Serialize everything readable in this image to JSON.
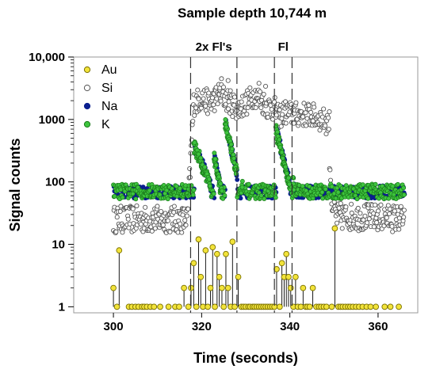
{
  "chart_data": {
    "type": "scatter",
    "title": "Sample depth 10,744 m",
    "xlabel": "Time (seconds)",
    "ylabel": "Signal counts",
    "xlim": [
      291,
      369
    ],
    "ylim": [
      0.8,
      10000
    ],
    "y_scale": "log",
    "x_ticks": [
      300,
      320,
      340,
      360
    ],
    "y_ticks": [
      {
        "value": 1,
        "label": "1"
      },
      {
        "value": 10,
        "label": "10"
      },
      {
        "value": 100,
        "label": "100"
      },
      {
        "value": 1000,
        "label": "1000"
      },
      {
        "value": 10000,
        "label": "10,000"
      }
    ],
    "grid": false,
    "legend_position": "top-left",
    "annotations": [
      {
        "text": "2x Fl's",
        "x_from": 317.5,
        "x_to": 328
      },
      {
        "text": "Fl",
        "x_from": 336.5,
        "x_to": 340.5
      }
    ],
    "markers": [
      317.5,
      328,
      336.5,
      340.5
    ],
    "series": [
      {
        "name": "Au",
        "color": "#f2e33a",
        "stroke": "#7a7000",
        "style": "stem",
        "points": [
          [
            300,
            2
          ],
          [
            300.8,
            1
          ],
          [
            301.3,
            8
          ],
          [
            303.5,
            1
          ],
          [
            304.2,
            1
          ],
          [
            305,
            1
          ],
          [
            305.7,
            1
          ],
          [
            306.5,
            1
          ],
          [
            307,
            1
          ],
          [
            307.6,
            1
          ],
          [
            308.4,
            1
          ],
          [
            309.2,
            1
          ],
          [
            310.6,
            1
          ],
          [
            312.5,
            1
          ],
          [
            314,
            1
          ],
          [
            314.9,
            1
          ],
          [
            316,
            2
          ],
          [
            317,
            1
          ],
          [
            317.6,
            2
          ],
          [
            318.2,
            5
          ],
          [
            318.8,
            1
          ],
          [
            319.3,
            12
          ],
          [
            319.8,
            3
          ],
          [
            320.3,
            1
          ],
          [
            320.9,
            8
          ],
          [
            321.4,
            1
          ],
          [
            322,
            2
          ],
          [
            322.5,
            9
          ],
          [
            323,
            1
          ],
          [
            323.5,
            7
          ],
          [
            324,
            3
          ],
          [
            324.6,
            2
          ],
          [
            325,
            1
          ],
          [
            325.5,
            7
          ],
          [
            326,
            2
          ],
          [
            326.6,
            1
          ],
          [
            327,
            11
          ],
          [
            327.5,
            1
          ],
          [
            328.3,
            3
          ],
          [
            329,
            1
          ],
          [
            329.5,
            1
          ],
          [
            330,
            1
          ],
          [
            330.6,
            1
          ],
          [
            331,
            1
          ],
          [
            331.6,
            1
          ],
          [
            332,
            1
          ],
          [
            332.5,
            1
          ],
          [
            333,
            1
          ],
          [
            333.5,
            1
          ],
          [
            334,
            1
          ],
          [
            334.5,
            1
          ],
          [
            335,
            1
          ],
          [
            335.5,
            1
          ],
          [
            336,
            1
          ],
          [
            336.5,
            1
          ],
          [
            337,
            4
          ],
          [
            337.7,
            1
          ],
          [
            338.2,
            5
          ],
          [
            338.7,
            3
          ],
          [
            339.2,
            7
          ],
          [
            339.7,
            3
          ],
          [
            340.2,
            2
          ],
          [
            340.8,
            1
          ],
          [
            341.3,
            3
          ],
          [
            341.8,
            1
          ],
          [
            342.5,
            1
          ],
          [
            343,
            2
          ],
          [
            343.6,
            1
          ],
          [
            344,
            1
          ],
          [
            344.5,
            1
          ],
          [
            345.2,
            2
          ],
          [
            346,
            1
          ],
          [
            346.6,
            1
          ],
          [
            347.1,
            1
          ],
          [
            347.7,
            1
          ],
          [
            348.3,
            1
          ],
          [
            349.5,
            1
          ],
          [
            350.2,
            18
          ],
          [
            351,
            1
          ],
          [
            351.5,
            1
          ],
          [
            352,
            1
          ],
          [
            352.6,
            1
          ],
          [
            353.2,
            1
          ],
          [
            353.7,
            1
          ],
          [
            354.3,
            1
          ],
          [
            355,
            1
          ],
          [
            355.7,
            1
          ],
          [
            356.5,
            1
          ],
          [
            357.4,
            1
          ],
          [
            358.3,
            1
          ],
          [
            359.5,
            1
          ],
          [
            361.5,
            1
          ],
          [
            362.8,
            1
          ],
          [
            364.7,
            1
          ]
        ]
      },
      {
        "name": "Si",
        "color": "#ffffff",
        "stroke": "#555555",
        "style": "scatter",
        "baseline": 25,
        "spread": 0.22,
        "segments": [
          {
            "x0": 300,
            "x1": 349,
            "dx": 0.12,
            "levels": [
              [
                300,
                25
              ],
              [
                316.8,
                25
              ],
              [
                318.2,
                1800
              ],
              [
                320,
                2200
              ],
              [
                322,
                1800
              ],
              [
                324,
                2600
              ],
              [
                326,
                2000
              ],
              [
                328.3,
                1500
              ],
              [
                330,
                1800
              ],
              [
                332,
                2500
              ],
              [
                335,
                1600
              ],
              [
                336.5,
                1500
              ],
              [
                337.2,
                1100
              ],
              [
                339,
                1300
              ],
              [
                341,
                1200
              ],
              [
                344,
                1200
              ],
              [
                346,
                1100
              ],
              [
                348.5,
                900
              ],
              [
                349,
                900
              ]
            ]
          },
          {
            "x0": 349,
            "x1": 366,
            "dx": 0.12,
            "levels": [
              [
                349,
                250
              ],
              [
                349.6,
                40
              ],
              [
                350.5,
                28
              ],
              [
                366,
                26
              ]
            ]
          }
        ],
        "outliers": [
          [
            317.5,
            60
          ],
          [
            324.5,
            4500
          ],
          [
            326,
            4200
          ],
          [
            333,
            3800
          ],
          [
            334.5,
            3400
          ]
        ]
      },
      {
        "name": "Na",
        "color": "#0a1f8f",
        "stroke": "#0a1f8f",
        "style": "scatter"
      },
      {
        "name": "K",
        "color": "#3ec43e",
        "stroke": "#1a7a1a",
        "style": "scatter",
        "baseline": 70,
        "spread": 0.12,
        "spikes": [
          {
            "x": 318.2,
            "peak": 400,
            "decay": 2.5,
            "to": 322
          },
          {
            "x": 322.8,
            "peak": 250,
            "decay": 1.3,
            "to": 325
          },
          {
            "x": 325.3,
            "peak": 900,
            "decay": 1.4,
            "to": 328
          },
          {
            "x": 329.2,
            "peak": 90,
            "decay": 0.6,
            "to": 330
          },
          {
            "x": 336.8,
            "peak": 700,
            "decay": 1.5,
            "to": 340
          },
          {
            "x": 340.7,
            "peak": 120,
            "decay": 0.5,
            "to": 341.5
          }
        ]
      }
    ]
  }
}
